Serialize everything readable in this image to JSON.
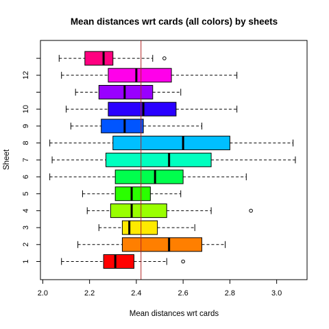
{
  "chart_data": {
    "type": "boxplot",
    "orientation": "horizontal",
    "title": "Mean distances wrt cards (all colors) by sheets",
    "xlabel": "Mean distances wrt cards",
    "ylabel": "Sheet",
    "xlim": [
      1.99,
      3.13
    ],
    "x_ticks": [
      "2.0",
      "2.2",
      "2.4",
      "2.6",
      "2.8",
      "3.0"
    ],
    "x_tick_values": [
      2.0,
      2.2,
      2.4,
      2.6,
      2.8,
      3.0
    ],
    "y_ticks": [
      "1",
      "2",
      "3",
      "4",
      "5",
      "6",
      "7",
      "8",
      "9",
      "10",
      "12"
    ],
    "y_tick_values": [
      1,
      2,
      3,
      4,
      5,
      6,
      7,
      8,
      9,
      10,
      12
    ],
    "reference_line": {
      "x": 2.42,
      "color": "#b22222"
    },
    "grid": false,
    "boxes": [
      {
        "sheet": 1,
        "color": "#ff0000",
        "whisker_low": 2.08,
        "q1": 2.26,
        "median": 2.31,
        "q3": 2.39,
        "whisker_high": 2.53,
        "outliers": [
          2.6
        ]
      },
      {
        "sheet": 2,
        "color": "#ff7f00",
        "whisker_low": 2.15,
        "q1": 2.34,
        "median": 2.54,
        "q3": 2.68,
        "whisker_high": 2.78,
        "outliers": []
      },
      {
        "sheet": 3,
        "color": "#ffea00",
        "whisker_low": 2.24,
        "q1": 2.34,
        "median": 2.37,
        "q3": 2.49,
        "whisker_high": 2.65,
        "outliers": []
      },
      {
        "sheet": 4,
        "color": "#99ff00",
        "whisker_low": 2.19,
        "q1": 2.29,
        "median": 2.38,
        "q3": 2.53,
        "whisker_high": 2.72,
        "outliers": [
          2.89
        ]
      },
      {
        "sheet": 5,
        "color": "#2aff00",
        "whisker_low": 2.17,
        "q1": 2.31,
        "median": 2.38,
        "q3": 2.46,
        "whisker_high": 2.59,
        "outliers": []
      },
      {
        "sheet": 6,
        "color": "#00ff4d",
        "whisker_low": 2.03,
        "q1": 2.31,
        "median": 2.48,
        "q3": 2.6,
        "whisker_high": 2.87,
        "outliers": []
      },
      {
        "sheet": 7,
        "color": "#00ffbf",
        "whisker_low": 2.04,
        "q1": 2.27,
        "median": 2.54,
        "q3": 2.72,
        "whisker_high": 3.08,
        "outliers": []
      },
      {
        "sheet": 8,
        "color": "#00bfff",
        "whisker_low": 2.03,
        "q1": 2.3,
        "median": 2.6,
        "q3": 2.8,
        "whisker_high": 3.07,
        "outliers": []
      },
      {
        "sheet": 9,
        "color": "#0055ff",
        "whisker_low": 2.12,
        "q1": 2.25,
        "median": 2.35,
        "q3": 2.43,
        "whisker_high": 2.68,
        "outliers": []
      },
      {
        "sheet": 10,
        "color": "#2a00ff",
        "whisker_low": 2.1,
        "q1": 2.28,
        "median": 2.43,
        "q3": 2.57,
        "whisker_high": 2.83,
        "outliers": []
      },
      {
        "sheet": 11,
        "color": "#9900ff",
        "whisker_low": 2.14,
        "q1": 2.24,
        "median": 2.35,
        "q3": 2.47,
        "whisker_high": 2.59,
        "outliers": []
      },
      {
        "sheet": 12,
        "color": "#ff00ea",
        "whisker_low": 2.08,
        "q1": 2.28,
        "median": 2.4,
        "q3": 2.55,
        "whisker_high": 2.83,
        "outliers": []
      },
      {
        "sheet": 13,
        "color": "#ff0080",
        "whisker_low": 2.07,
        "q1": 2.18,
        "median": 2.26,
        "q3": 2.3,
        "whisker_high": 2.47,
        "outliers": [
          2.52
        ]
      }
    ]
  }
}
